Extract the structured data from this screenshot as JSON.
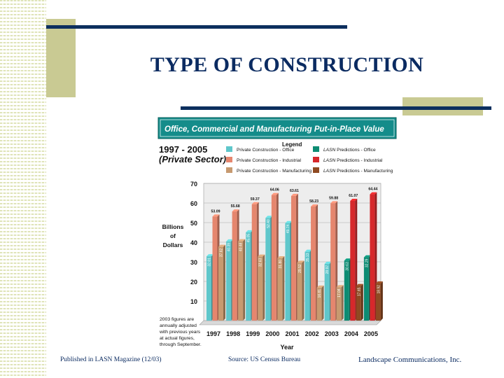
{
  "slide": {
    "title": "TYPE OF CONSTRUCTION",
    "footer_left": "Published in LASN Magazine (12/03)",
    "footer_center": "Source: US Census Bureau",
    "footer_right": "Landscape Communications, Inc."
  },
  "colors": {
    "navy": "#0c2f5e",
    "olive": "#c9ca93",
    "banner": "#148c8a",
    "office": "#5fc7cb",
    "industrial": "#e5866e",
    "manufacturing": "#c79a70",
    "lasn_office": "#0d8c73",
    "lasn_industrial": "#d6282b",
    "lasn_manufacturing": "#8f4a22"
  },
  "chart_data": {
    "type": "bar",
    "title": "Office, Commercial and Manufacturing Put-in-Place Value",
    "subtitle_line1": "1997 - 2005",
    "subtitle_line2": "(Private Sector)",
    "legend_title": "Legend",
    "ylabel_lines": [
      "Billions",
      "of",
      "Dollars"
    ],
    "xlabel": "Year",
    "ylim": [
      0,
      70
    ],
    "yticks": [
      10,
      20,
      30,
      40,
      50,
      60,
      70
    ],
    "note_lines": [
      "2003 figures are",
      "annually adjusted",
      "with previous years",
      "at actual figures,",
      "through September."
    ],
    "categories": [
      "1997",
      "1998",
      "1999",
      "2000",
      "2001",
      "2002",
      "2003",
      "2004",
      "2005"
    ],
    "series": [
      {
        "name": "Private Construction - Office",
        "key": "office",
        "lasn": false,
        "values": [
          32.81,
          40.39,
          45.05,
          52.4,
          49.74,
          35.13,
          28.97,
          null,
          null
        ],
        "labels": [
          "32.81",
          "40.39",
          "45.05",
          "52.40",
          "49.74",
          "35.13",
          "28.97",
          "",
          ""
        ]
      },
      {
        "name": "Private Construction - Industrial",
        "key": "industrial",
        "lasn": false,
        "values": [
          53.09,
          55.68,
          59.37,
          64.06,
          63.61,
          58.23,
          59.88,
          null,
          null
        ],
        "labels": [
          "53.09",
          "55.68",
          "59.37",
          "64.06",
          "63.61",
          "58.23",
          "59.88",
          "",
          ""
        ]
      },
      {
        "name": "Private Construction - Manufacturing",
        "key": "manufacturing",
        "lasn": false,
        "values": [
          37.62,
          40.48,
          32.63,
          31.8,
          29.52,
          16.81,
          17.04,
          null,
          null
        ],
        "labels": [
          "37.62",
          "40.48",
          "32.63",
          "31.80",
          "29.52",
          "16.81",
          "17.04",
          "",
          ""
        ]
      },
      {
        "name": "LASN Predictions - Office",
        "key": "lasn_office",
        "lasn": true,
        "values": [
          null,
          null,
          null,
          null,
          null,
          null,
          null,
          30.63,
          32.29
        ],
        "labels": [
          "",
          "",
          "",
          "",
          "",
          "",
          "",
          "30.63",
          "32.29"
        ]
      },
      {
        "name": "LASN Predictions - Industrial",
        "key": "lasn_industrial",
        "lasn": true,
        "values": [
          null,
          null,
          null,
          null,
          null,
          null,
          null,
          61.07,
          64.44
        ],
        "labels": [
          "",
          "",
          "",
          "",
          "",
          "",
          "",
          "61.07",
          "64.44"
        ]
      },
      {
        "name": "LASN Predictions - Manufacturing",
        "key": "lasn_manufacturing",
        "lasn": true,
        "values": [
          null,
          null,
          null,
          null,
          null,
          null,
          null,
          17.65,
          18.92
        ],
        "labels": [
          "",
          "",
          "",
          "",
          "",
          "",
          "",
          "17.65",
          "18.92"
        ]
      }
    ],
    "lasn_label": "LASN",
    "lasn_suffixes": [
      " Predictions - Office",
      " Predictions - Industrial",
      " Predictions - Manufacturing"
    ]
  }
}
